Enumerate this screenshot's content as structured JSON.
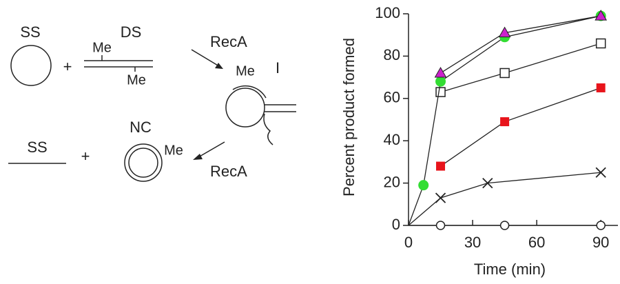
{
  "diagram": {
    "ss_top": "SS",
    "plus_top": "+",
    "ds": "DS",
    "me_ds_top": "Me",
    "me_ds_bottom": "Me",
    "reca_top": "RecA",
    "me_intermediate": "Me",
    "intermediate": "I",
    "ss_bottom": "SS",
    "plus_bottom": "+",
    "nc": "NC",
    "me_nc": "Me",
    "reca_bottom": "RecA"
  },
  "chart_data": {
    "type": "line",
    "xlabel": "Time (min)",
    "ylabel": "Percent product formed",
    "xlim": [
      0,
      98
    ],
    "ylim": [
      0,
      100
    ],
    "xticks": [
      0,
      30,
      60,
      90
    ],
    "yticks": [
      0,
      20,
      40,
      60,
      80,
      100
    ],
    "series": [
      {
        "marker": "open-circle",
        "color": "#222222",
        "from_origin": true,
        "x": [
          15,
          45,
          90
        ],
        "values": [
          0,
          0,
          0
        ]
      },
      {
        "marker": "cross",
        "color": "#222222",
        "from_origin": true,
        "x": [
          15,
          37,
          90
        ],
        "values": [
          13,
          20,
          25
        ]
      },
      {
        "marker": "square",
        "color": "#e8141b",
        "from_origin": false,
        "x": [
          15,
          45,
          90
        ],
        "values": [
          28,
          49,
          65
        ]
      },
      {
        "marker": "open-square",
        "color": "#222222",
        "from_origin": false,
        "x": [
          15,
          45,
          90
        ],
        "values": [
          63,
          72,
          86
        ]
      },
      {
        "marker": "circle",
        "color": "#33dd33",
        "from_origin": true,
        "x": [
          7,
          15,
          45,
          90
        ],
        "values": [
          19,
          68,
          89,
          99
        ]
      },
      {
        "marker": "triangle",
        "color": "#cc22cc",
        "from_origin": false,
        "x": [
          15,
          45,
          90
        ],
        "values": [
          72,
          91,
          99
        ]
      }
    ]
  }
}
